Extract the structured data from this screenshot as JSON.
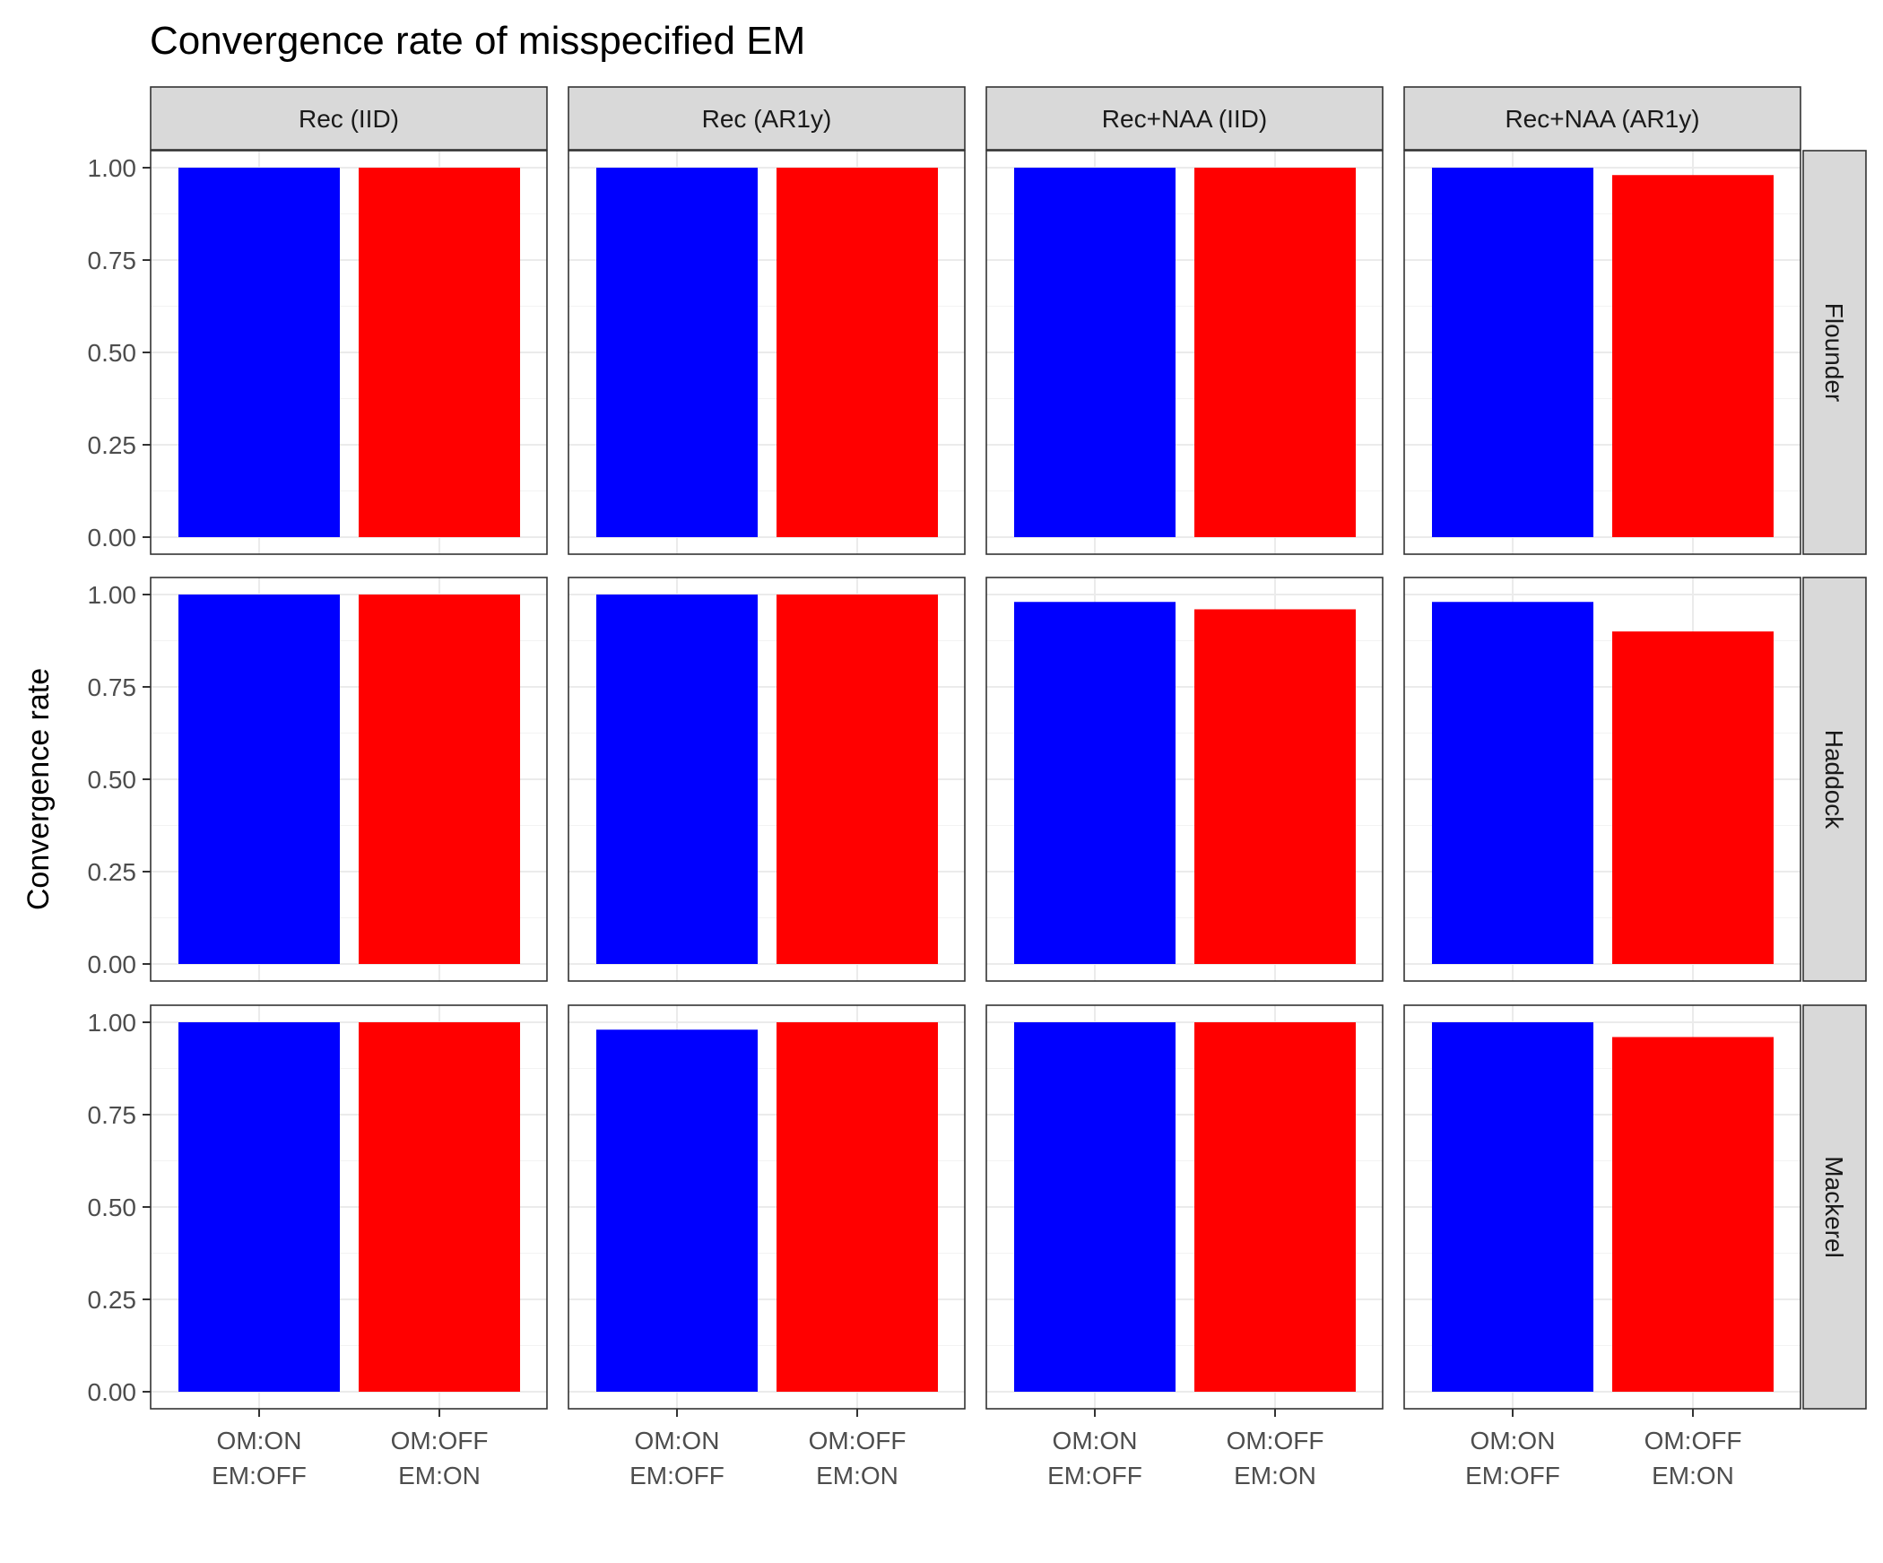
{
  "chart_data": {
    "type": "bar",
    "title": "Convergence rate of misspecified EM",
    "xlabel": "",
    "ylabel": "Convergence rate",
    "ylim": [
      0,
      1
    ],
    "y_ticks": [
      "0.00",
      "0.25",
      "0.50",
      "0.75",
      "1.00"
    ],
    "y_tick_values": [
      0,
      0.25,
      0.5,
      0.75,
      1
    ],
    "categories": [
      {
        "line1": "OM:ON",
        "line2": "EM:OFF"
      },
      {
        "line1": "OM:OFF",
        "line2": "EM:ON"
      }
    ],
    "bar_colors": [
      "#0000ff",
      "#ff0000"
    ],
    "facet_columns": [
      "Rec (IID)",
      "Rec (AR1y)",
      "Rec+NAA (IID)",
      "Rec+NAA (AR1y)"
    ],
    "facet_rows": [
      "Flounder",
      "Haddock",
      "Mackerel"
    ],
    "values": [
      [
        [
          1.0,
          1.0
        ],
        [
          1.0,
          1.0
        ],
        [
          1.0,
          1.0
        ],
        [
          1.0,
          0.98
        ]
      ],
      [
        [
          1.0,
          1.0
        ],
        [
          1.0,
          1.0
        ],
        [
          0.98,
          0.96
        ],
        [
          0.98,
          0.9
        ]
      ],
      [
        [
          1.0,
          1.0
        ],
        [
          0.98,
          1.0
        ],
        [
          1.0,
          1.0
        ],
        [
          1.0,
          0.96
        ]
      ]
    ],
    "grid": true,
    "legend": "none"
  }
}
